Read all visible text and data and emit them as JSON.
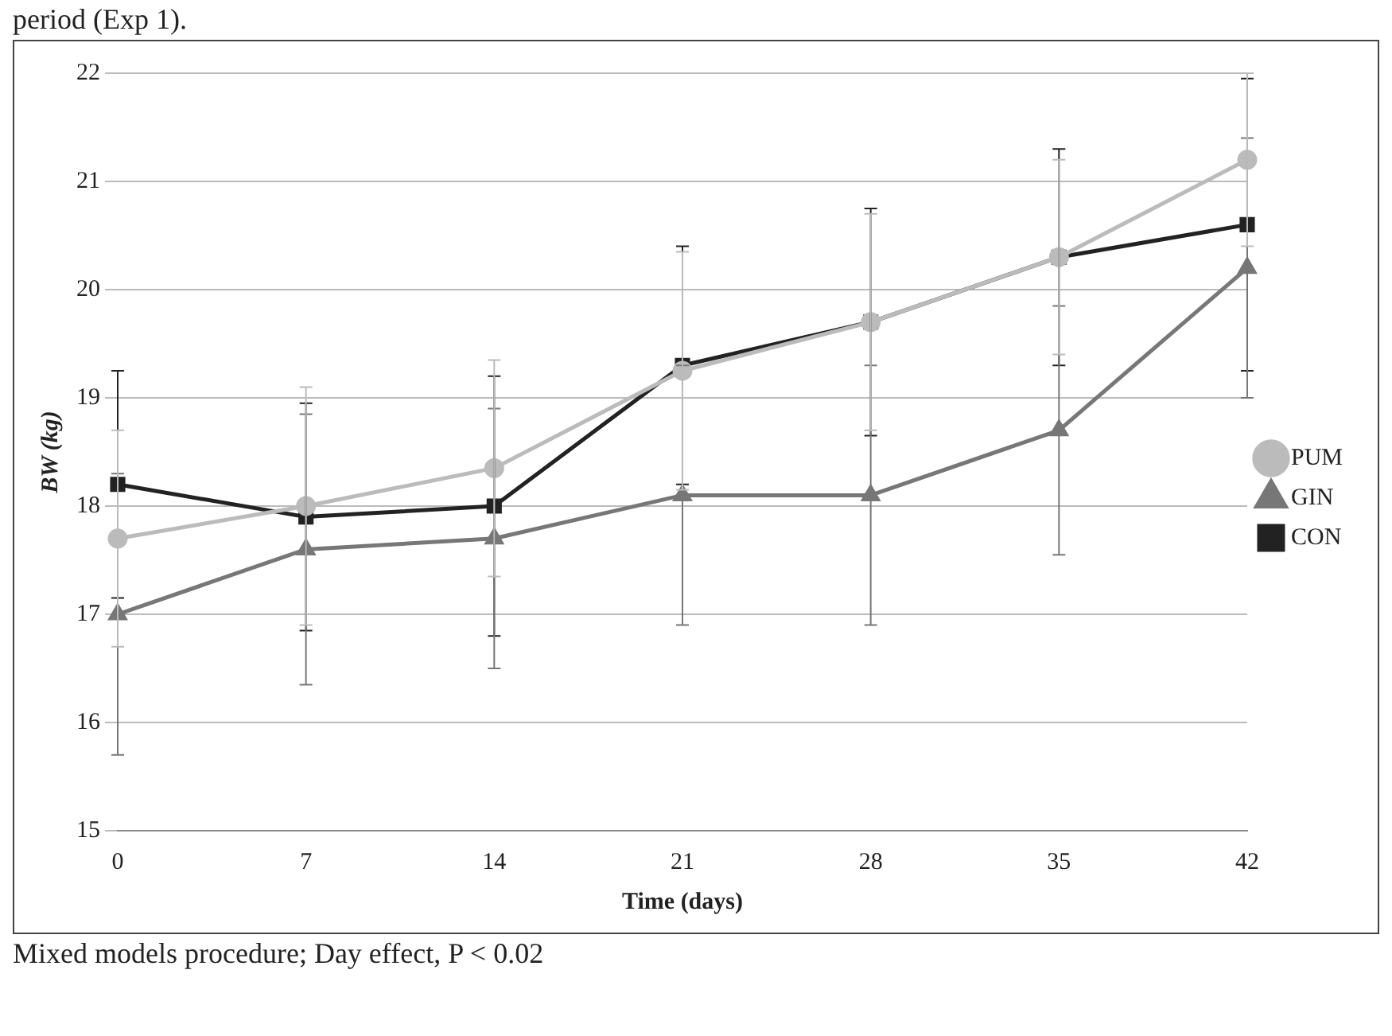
{
  "chart_data": {
    "type": "line",
    "xlabel": "Time (days)",
    "ylabel": "BW (kg)",
    "categories": [
      "0",
      "7",
      "14",
      "21",
      "28",
      "35",
      "42"
    ],
    "series": [
      {
        "name": "CON",
        "color": "#222222",
        "marker": "square",
        "values": [
          18.2,
          17.9,
          18.0,
          19.3,
          19.7,
          20.3,
          20.6
        ],
        "errors": [
          1.05,
          1.05,
          1.2,
          1.1,
          1.05,
          1.0,
          1.35
        ]
      },
      {
        "name": "GIN",
        "color": "#777777",
        "marker": "triangle",
        "values": [
          17.0,
          17.6,
          17.7,
          18.1,
          18.1,
          18.7,
          20.2
        ],
        "errors": [
          1.3,
          1.25,
          1.2,
          1.2,
          1.2,
          1.15,
          1.2
        ]
      },
      {
        "name": "PUM",
        "color": "#bbbbbb",
        "marker": "circle",
        "values": [
          17.7,
          18.0,
          18.35,
          19.25,
          19.7,
          20.3,
          21.2
        ],
        "errors": [
          1.0,
          1.1,
          1.0,
          1.1,
          1.0,
          0.9,
          0.8
        ]
      }
    ],
    "ylim": [
      15,
      22
    ],
    "yticks": [
      15,
      16,
      17,
      18,
      19,
      20,
      21,
      22
    ],
    "grid": "y",
    "legend": "right",
    "annotations": [
      "period (Exp 1).",
      "Mixed models procedure; Day effect, P < 0.02"
    ]
  }
}
